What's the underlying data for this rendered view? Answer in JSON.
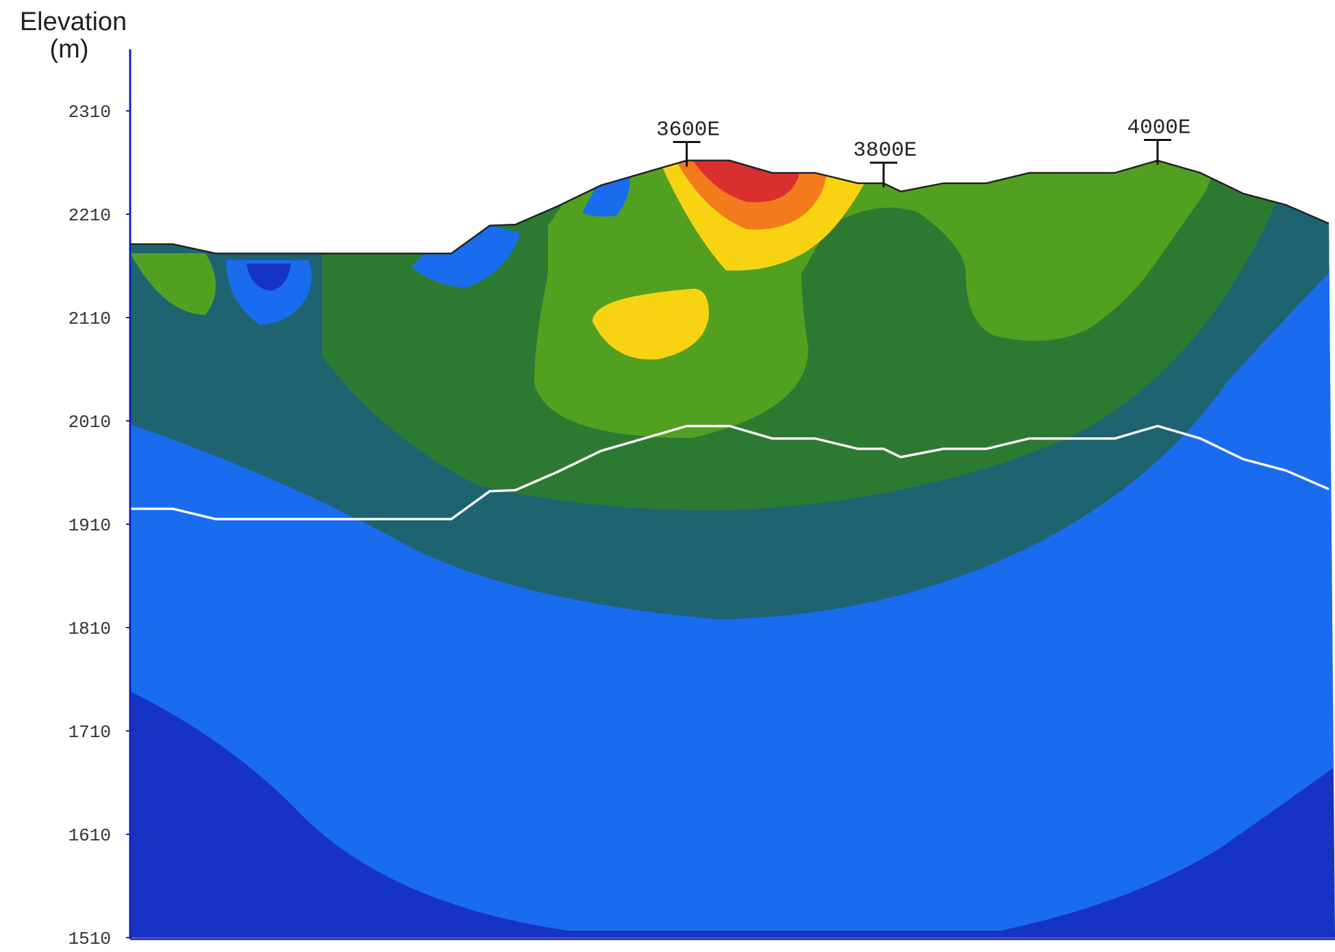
{
  "chart_data": {
    "type": "heatmap",
    "title": "",
    "ylabel_line1": "Elevation",
    "ylabel_line2": "(m)",
    "xlabel": "",
    "ylim": [
      1510,
      2350
    ],
    "yticks": [
      2310,
      2210,
      2110,
      2010,
      1910,
      1810,
      1710,
      1610,
      1510
    ],
    "stations": [
      {
        "label": "3600E",
        "elevation": 2260
      },
      {
        "label": "3800E",
        "elevation": 2240
      },
      {
        "label": "4000E",
        "elevation": 2262
      }
    ],
    "topography": [
      [
        0,
        2181
      ],
      [
        1,
        2181
      ],
      [
        2,
        2172
      ],
      [
        4,
        2172
      ],
      [
        6,
        2172
      ],
      [
        7.5,
        2172
      ],
      [
        8.4,
        2199
      ],
      [
        9,
        2200
      ],
      [
        10,
        2218
      ],
      [
        11,
        2238
      ],
      [
        12,
        2250
      ],
      [
        13,
        2262
      ],
      [
        14,
        2262
      ],
      [
        15,
        2250
      ],
      [
        16,
        2250
      ],
      [
        17,
        2240
      ],
      [
        17.6,
        2240
      ],
      [
        18,
        2232
      ],
      [
        19,
        2240
      ],
      [
        20,
        2240
      ],
      [
        21,
        2250
      ],
      [
        22,
        2250
      ],
      [
        23,
        2250
      ],
      [
        24,
        2262
      ],
      [
        25,
        2250
      ],
      [
        26,
        2230
      ],
      [
        27,
        2219
      ],
      [
        28,
        2201
      ]
    ],
    "boundary_line": [
      [
        0,
        1925
      ],
      [
        1,
        1925
      ],
      [
        2,
        1915
      ],
      [
        4,
        1915
      ],
      [
        6,
        1915
      ],
      [
        7.5,
        1915
      ],
      [
        8.4,
        1942
      ],
      [
        9,
        1943
      ],
      [
        10,
        1961
      ],
      [
        11,
        1981
      ],
      [
        12,
        1993
      ],
      [
        13,
        2005
      ],
      [
        14,
        2005
      ],
      [
        15,
        1993
      ],
      [
        16,
        1993
      ],
      [
        17,
        1983
      ],
      [
        17.6,
        1983
      ],
      [
        18,
        1975
      ],
      [
        19,
        1983
      ],
      [
        20,
        1983
      ],
      [
        21,
        1993
      ],
      [
        22,
        1993
      ],
      [
        23,
        1993
      ],
      [
        24,
        2005
      ],
      [
        25,
        1993
      ],
      [
        26,
        1973
      ],
      [
        27,
        1962
      ],
      [
        28,
        1944
      ]
    ],
    "colors": {
      "deep_blue": "#1733c4",
      "blue": "#1a6cef",
      "dark_teal": "#1d6470",
      "dark_green": "#2c7a32",
      "green": "#52a020",
      "yellow": "#f8d312",
      "orange": "#f37b1c",
      "red": "#d92f2f",
      "magenta": "#c0167b",
      "axis": "#1522b8",
      "boundary_line": "#ffffff",
      "topo_line": "#222222"
    }
  }
}
